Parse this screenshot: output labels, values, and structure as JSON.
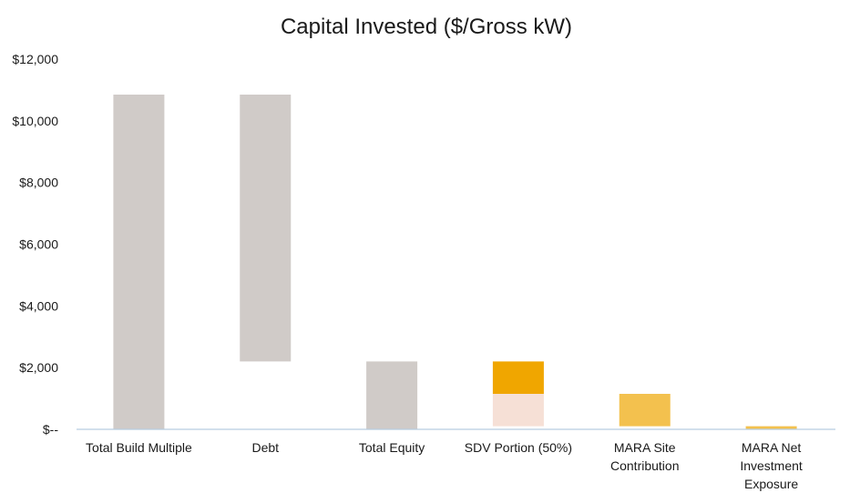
{
  "chart_data": {
    "type": "bar",
    "subtype": "waterfall",
    "title": "Capital Invested ($/Gross kW)",
    "xlabel": "",
    "ylabel": "",
    "ylim": [
      0,
      12000
    ],
    "yticks": [
      0,
      2000,
      4000,
      6000,
      8000,
      10000,
      12000
    ],
    "ytick_labels": [
      "$--",
      "$2,000",
      "$4,000",
      "$6,000",
      "$8,000",
      "$10,000",
      "$12,000"
    ],
    "grid": false,
    "legend": "none",
    "categories": [
      "Total Build Multiple",
      "Debt",
      "Total Equity",
      "SDV Portion (50%)",
      "MARA Site Contribution",
      "MARA Net Investment Exposure"
    ],
    "bars": [
      {
        "category": "Total Build Multiple",
        "segments": [
          {
            "bottom": 0,
            "top": 10850,
            "color": "#d0cbc8"
          }
        ]
      },
      {
        "category": "Debt",
        "segments": [
          {
            "bottom": 2200,
            "top": 10850,
            "color": "#d0cbc8"
          }
        ]
      },
      {
        "category": "Total Equity",
        "segments": [
          {
            "bottom": 0,
            "top": 2200,
            "color": "#d0cbc8"
          }
        ]
      },
      {
        "category": "SDV Portion (50%)",
        "segments": [
          {
            "bottom": 100,
            "top": 1150,
            "color": "#f6e0d6"
          },
          {
            "bottom": 1150,
            "top": 2200,
            "color": "#f0a600"
          }
        ]
      },
      {
        "category": "MARA Site Contribution",
        "segments": [
          {
            "bottom": 100,
            "top": 1150,
            "color": "#f3c14e"
          }
        ]
      },
      {
        "category": "MARA Net Investment Exposure",
        "segments": [
          {
            "bottom": 0,
            "top": 100,
            "color": "#f3c14e"
          }
        ]
      }
    ],
    "colors": {
      "axis": "#b7cde0",
      "gray": "#d0cbc8",
      "orange": "#f0a600",
      "gold": "#f3c14e",
      "peach": "#f6e0d6"
    }
  }
}
